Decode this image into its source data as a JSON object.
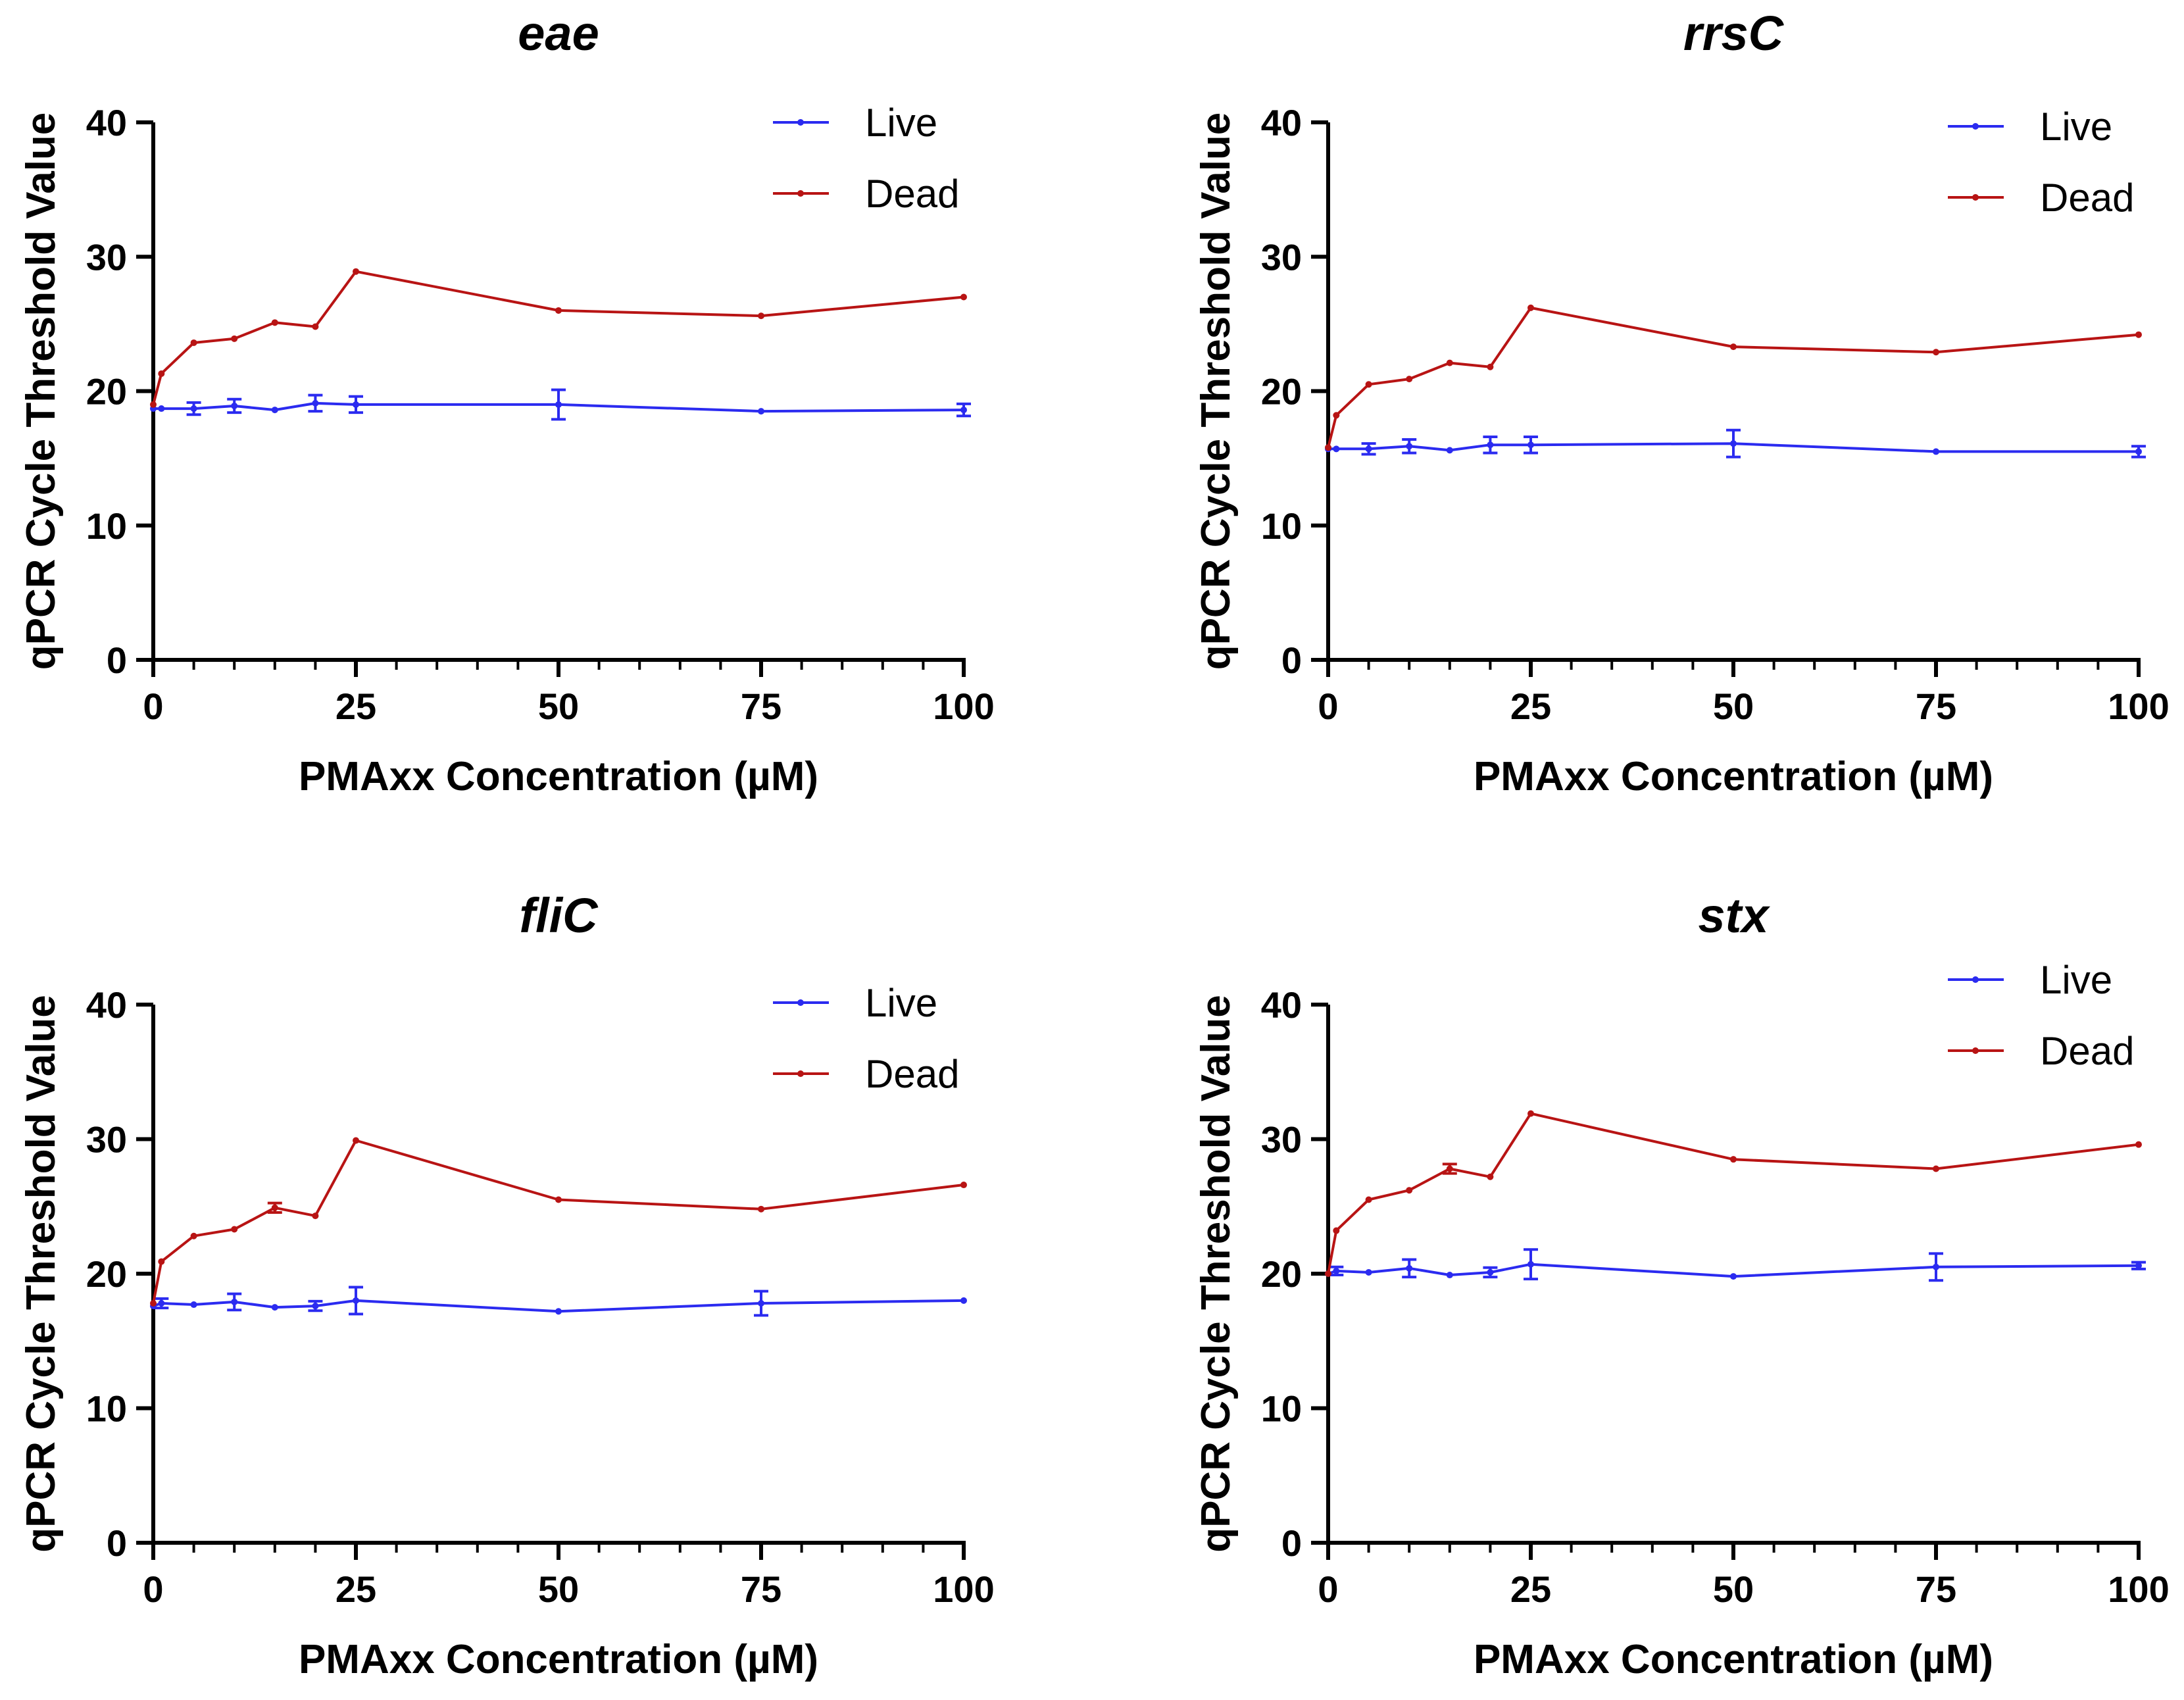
{
  "colors": {
    "live": "#2B2BF0",
    "dead": "#B81414",
    "axis": "#000000"
  },
  "chart_data": [
    {
      "type": "line",
      "title": "eae",
      "xlabel": "PMAxx Concentration (µM)",
      "ylabel": "qPCR Cycle Threshold Value",
      "xlim": [
        0,
        100
      ],
      "ylim": [
        0,
        40
      ],
      "xticks": [
        0,
        25,
        50,
        75,
        100
      ],
      "yticks": [
        0,
        10,
        20,
        30,
        40
      ],
      "x": [
        0,
        1,
        5,
        10,
        15,
        20,
        25,
        50,
        75,
        100
      ],
      "legend": "top-right",
      "series": [
        {
          "name": "Live",
          "color_key": "live",
          "values": [
            18.7,
            18.7,
            18.7,
            18.9,
            18.6,
            19.1,
            19.0,
            19.0,
            18.5,
            18.6
          ],
          "errors": [
            0,
            0,
            0.45,
            0.5,
            0,
            0.6,
            0.6,
            1.1,
            0,
            0.45
          ]
        },
        {
          "name": "Dead",
          "color_key": "dead",
          "values": [
            19.0,
            21.3,
            23.6,
            23.9,
            25.1,
            24.8,
            28.9,
            26.0,
            25.6,
            27.0
          ],
          "errors": [
            0,
            0,
            0,
            0,
            0,
            0,
            0,
            0,
            0,
            0
          ]
        }
      ]
    },
    {
      "type": "line",
      "title": "rrsC",
      "xlabel": "PMAxx Concentration (µM)",
      "ylabel": "qPCR Cycle Threshold Value",
      "xlim": [
        0,
        100
      ],
      "ylim": [
        0,
        40
      ],
      "xticks": [
        0,
        25,
        50,
        75,
        100
      ],
      "yticks": [
        0,
        10,
        20,
        30,
        40
      ],
      "x": [
        0,
        1,
        5,
        10,
        15,
        20,
        25,
        50,
        75,
        100
      ],
      "legend": "top-right",
      "series": [
        {
          "name": "Live",
          "color_key": "live",
          "values": [
            15.7,
            15.7,
            15.7,
            15.9,
            15.6,
            16.0,
            16.0,
            16.1,
            15.5,
            15.5
          ],
          "errors": [
            0,
            0,
            0.4,
            0.5,
            0,
            0.6,
            0.6,
            1.0,
            0,
            0.4
          ]
        },
        {
          "name": "Dead",
          "color_key": "dead",
          "values": [
            15.8,
            18.2,
            20.5,
            20.9,
            22.1,
            21.8,
            26.2,
            23.3,
            22.9,
            24.2
          ],
          "errors": [
            0,
            0,
            0,
            0,
            0,
            0,
            0,
            0,
            0,
            0
          ]
        }
      ]
    },
    {
      "type": "line",
      "title": "fliC",
      "xlabel": "PMAxx Concentration (µM)",
      "ylabel": "qPCR Cycle Threshold Value",
      "xlim": [
        0,
        100
      ],
      "ylim": [
        0,
        40
      ],
      "xticks": [
        0,
        25,
        50,
        75,
        100
      ],
      "yticks": [
        0,
        10,
        20,
        30,
        40
      ],
      "x": [
        0,
        1,
        5,
        10,
        15,
        20,
        25,
        50,
        75,
        100
      ],
      "legend": "top-right",
      "series": [
        {
          "name": "Live",
          "color_key": "live",
          "values": [
            17.6,
            17.8,
            17.7,
            17.9,
            17.5,
            17.6,
            18.0,
            17.2,
            17.8,
            18.0
          ],
          "errors": [
            0,
            0.35,
            0,
            0.6,
            0,
            0.35,
            1.0,
            0,
            0.9,
            0
          ]
        },
        {
          "name": "Dead",
          "color_key": "dead",
          "values": [
            17.8,
            20.9,
            22.8,
            23.3,
            24.9,
            24.3,
            29.9,
            25.5,
            24.8,
            26.6
          ],
          "errors": [
            0,
            0,
            0,
            0,
            0.35,
            0,
            0,
            0,
            0,
            0
          ]
        }
      ]
    },
    {
      "type": "line",
      "title": "stx",
      "xlabel": "PMAxx Concentration (µM)",
      "ylabel": "qPCR Cycle Threshold Value",
      "xlim": [
        0,
        100
      ],
      "ylim": [
        0,
        40
      ],
      "xticks": [
        0,
        25,
        50,
        75,
        100
      ],
      "yticks": [
        0,
        10,
        20,
        30,
        40
      ],
      "x": [
        0,
        1,
        5,
        10,
        15,
        20,
        25,
        50,
        75,
        100
      ],
      "legend": "top-right",
      "series": [
        {
          "name": "Live",
          "color_key": "live",
          "values": [
            20.0,
            20.2,
            20.1,
            20.4,
            19.9,
            20.1,
            20.7,
            19.8,
            20.5,
            20.6
          ],
          "errors": [
            0,
            0.3,
            0,
            0.65,
            0,
            0.35,
            1.1,
            0,
            1.0,
            0.25
          ]
        },
        {
          "name": "Dead",
          "color_key": "dead",
          "values": [
            20.0,
            23.2,
            25.5,
            26.2,
            27.8,
            27.2,
            31.9,
            28.5,
            27.8,
            29.6
          ],
          "errors": [
            0,
            0,
            0,
            0,
            0.35,
            0,
            0,
            0,
            0,
            0
          ]
        }
      ]
    }
  ]
}
